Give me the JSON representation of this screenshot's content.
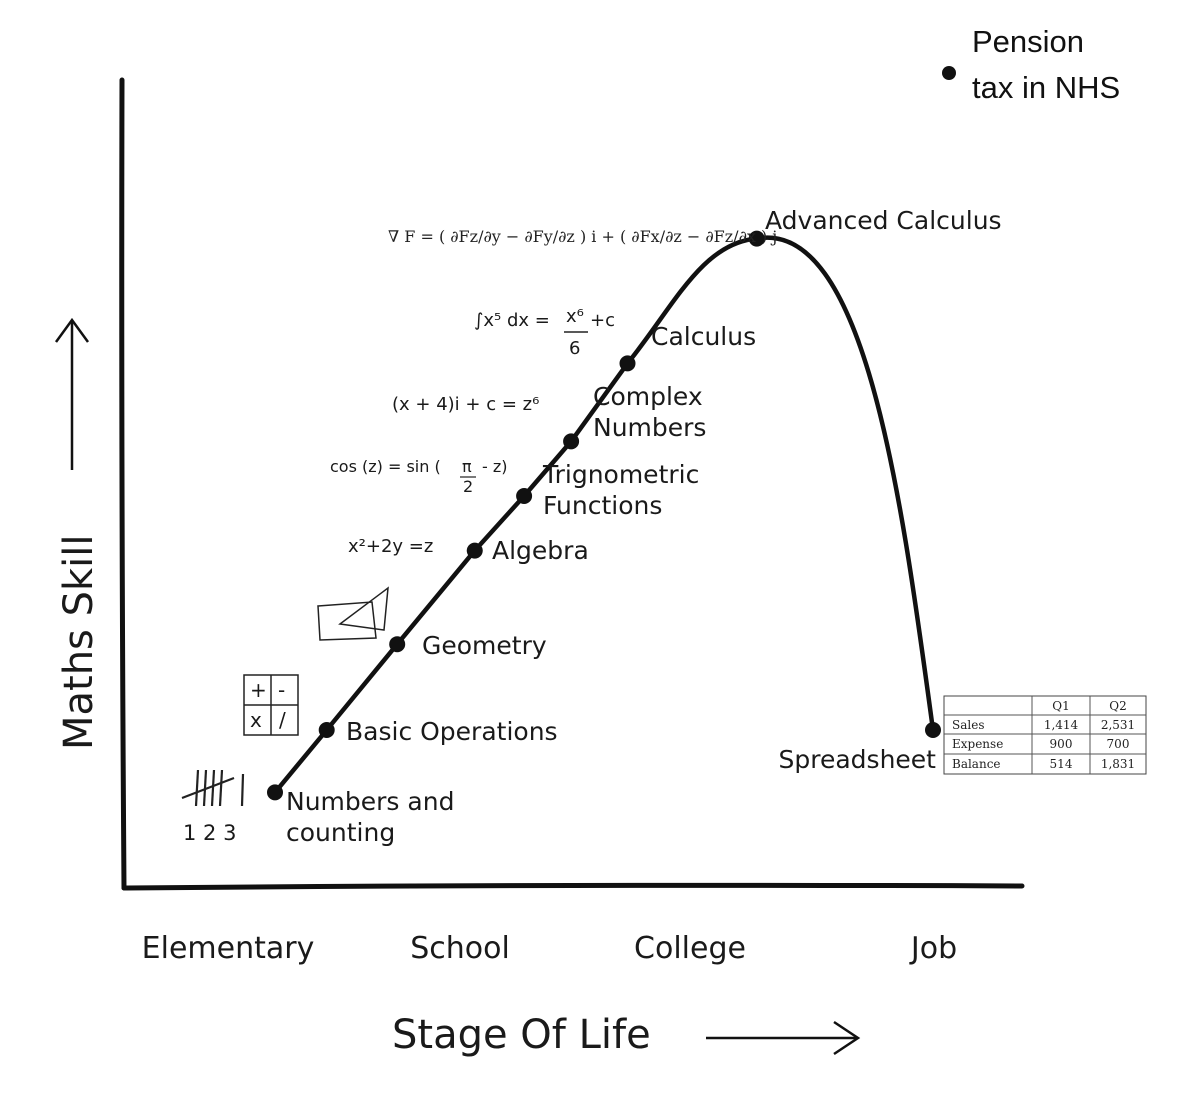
{
  "chart_data": {
    "type": "line",
    "title": "",
    "xlabel": "Stage Of Life",
    "ylabel": "Maths Skill",
    "x_categories": [
      "Elementary",
      "School",
      "College",
      "Job"
    ],
    "grid": false,
    "legend": "none",
    "series": [
      {
        "points": [
          {
            "label": "Numbers and counting",
            "stage": 0.2,
            "skill": 12
          },
          {
            "label": "Basic Operations",
            "stage": 0.42,
            "skill": 20
          },
          {
            "label": "Geometry",
            "stage": 0.72,
            "skill": 31
          },
          {
            "label": "Algebra",
            "stage": 1.05,
            "skill": 43
          },
          {
            "label": "Trignometric Functions",
            "stage": 1.26,
            "skill": 50
          },
          {
            "label": "Complex Numbers",
            "stage": 1.46,
            "skill": 57
          },
          {
            "label": "Calculus",
            "stage": 1.7,
            "skill": 67
          },
          {
            "label": "Advanced Calculus",
            "stage": 2.25,
            "skill": 83
          },
          {
            "label": "Spreadsheet",
            "stage": 3.0,
            "skill": 20
          }
        ]
      }
    ],
    "annotations": {
      "numbers_counting": "1 2 3",
      "ops": [
        "+",
        "-",
        "x",
        "/"
      ],
      "algebra_formula": "x²+2y =z",
      "trig_formula_left": "cos (z) = sin (",
      "trig_pi": "π",
      "trig_two": "2",
      "trig_right": "- z)",
      "complex_formula": "(x + 4)i + c = z⁶",
      "calc_formula_left": "∫x⁵ dx =",
      "calc_formula_num": "x⁶",
      "calc_formula_den": "6",
      "calc_formula_right": "+c",
      "curl_formula": "∇  F = ( ∂Fz/∂y − ∂Fy/∂z ) i + ( ∂Fx/∂z − ∂Fz/∂x ) j"
    },
    "spreadsheet": {
      "columns": [
        "",
        "Q1",
        "Q2"
      ],
      "rows": [
        [
          "Sales",
          "1,414",
          "2,531"
        ],
        [
          "Expense",
          "900",
          "700"
        ],
        [
          "Balance",
          "514",
          "1,831"
        ]
      ]
    },
    "callout": {
      "lines": [
        "Pension",
        "tax in NHS"
      ]
    }
  }
}
